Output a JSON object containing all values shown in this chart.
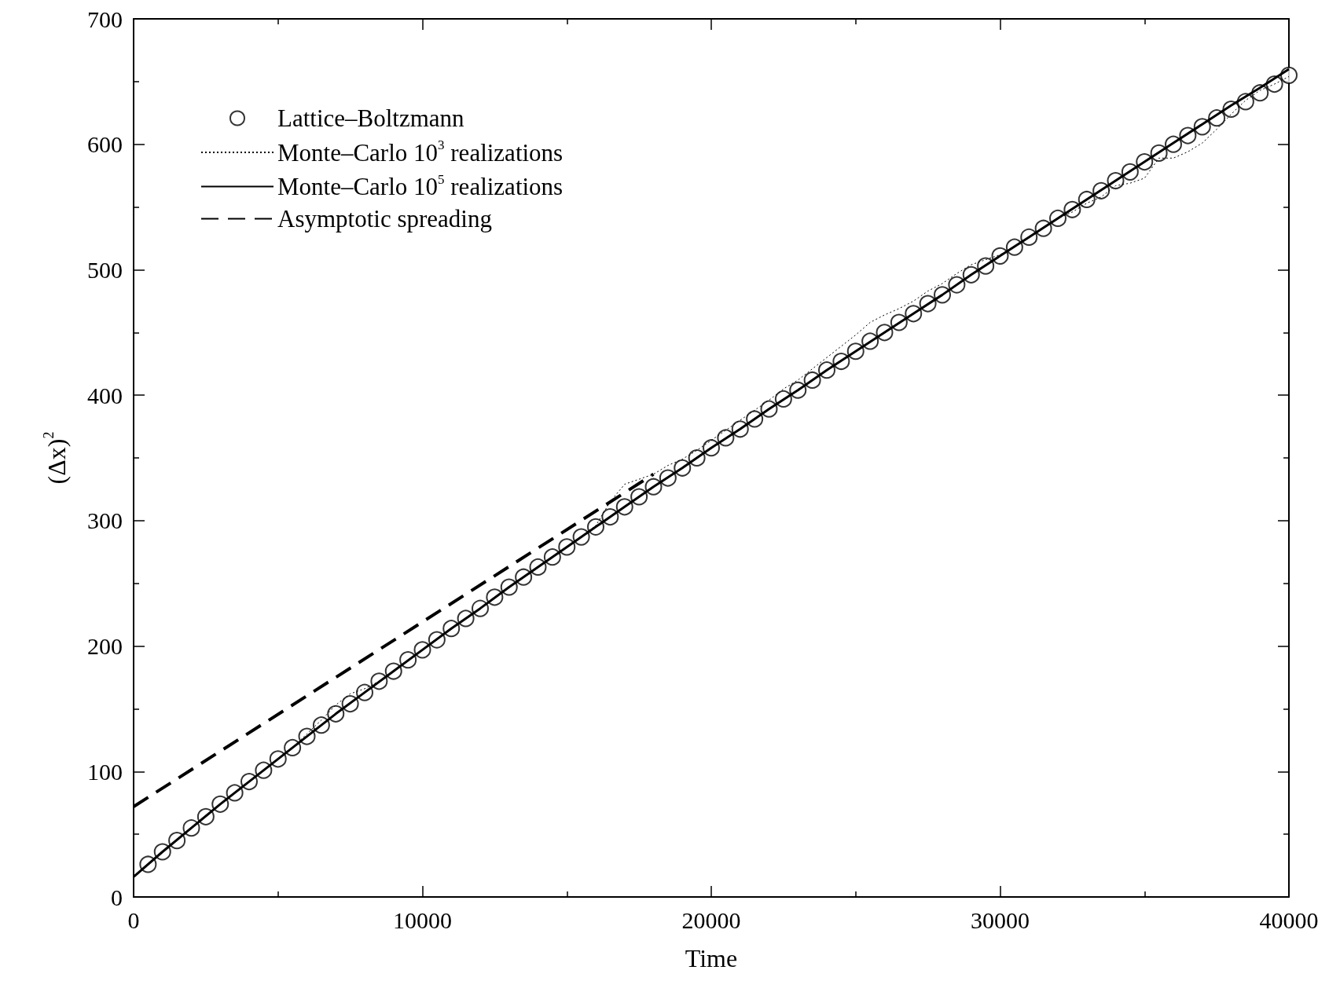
{
  "chart_data": {
    "type": "line",
    "xlabel": "Time",
    "ylabel": "(Δx)$^{2}$",
    "xlim": [
      0,
      40000
    ],
    "xticks": [
      0,
      10000,
      20000,
      30000,
      40000
    ],
    "ylim": [
      0,
      700
    ],
    "yticks": [
      0,
      100,
      200,
      300,
      400,
      500,
      600,
      700
    ],
    "grid": false,
    "legend": "top left",
    "series": [
      {
        "name": "Lattice–Boltzmann",
        "type": "scatter",
        "marker": "circle",
        "color": "#000000",
        "x": [
          500,
          1000,
          1500,
          2000,
          2500,
          3000,
          3500,
          4000,
          4500,
          5000,
          5500,
          6000,
          6500,
          7000,
          7500,
          8000,
          8500,
          9000,
          9500,
          10000,
          10500,
          11000,
          11500,
          12000,
          12500,
          13000,
          13500,
          14000,
          14500,
          15000,
          15500,
          16000,
          16500,
          17000,
          17500,
          18000,
          18500,
          19000,
          19500,
          20000,
          20500,
          21000,
          21500,
          22000,
          22500,
          23000,
          23500,
          24000,
          24500,
          25000,
          25500,
          26000,
          26500,
          27000,
          27500,
          28000,
          28500,
          29000,
          29500,
          30000,
          30500,
          31000,
          31500,
          32000,
          32500,
          33000,
          33500,
          34000,
          34500,
          35000,
          35500,
          36000,
          36500,
          37000,
          37500,
          38000,
          38500,
          39000,
          39500,
          40000
        ],
        "values": [
          26,
          36,
          45,
          55,
          64,
          74,
          83,
          92,
          101,
          110,
          119,
          128,
          137,
          146,
          154,
          163,
          172,
          180,
          189,
          197,
          205,
          214,
          222,
          230,
          239,
          247,
          255,
          263,
          271,
          279,
          287,
          295,
          303,
          311,
          319,
          327,
          334,
          342,
          350,
          358,
          366,
          373,
          381,
          389,
          397,
          404,
          412,
          420,
          427,
          435,
          443,
          450,
          458,
          465,
          473,
          480,
          488,
          496,
          503,
          511,
          518,
          526,
          533,
          541,
          548,
          556,
          563,
          571,
          578,
          586,
          593,
          600,
          607,
          614,
          621,
          628,
          634,
          641,
          648,
          655
        ]
      },
      {
        "name": "Monte–Carlo 10$^{3}$ realizations",
        "type": "line",
        "line_style": "dotted",
        "marker": "none",
        "color": "#000000",
        "x": [
          0,
          500,
          1000,
          1500,
          2000,
          2500,
          3000,
          3500,
          4000,
          4500,
          5000,
          5500,
          6000,
          6500,
          7000,
          7500,
          8000,
          8500,
          9000,
          9500,
          10000,
          10500,
          11000,
          11500,
          12000,
          12500,
          13000,
          13500,
          14000,
          14500,
          15000,
          15500,
          16000,
          16500,
          17000,
          17500,
          18000,
          18500,
          19000,
          19500,
          20000,
          20500,
          21000,
          21500,
          22000,
          22500,
          23000,
          23500,
          24000,
          24500,
          25000,
          25500,
          26000,
          26500,
          27000,
          27500,
          28000,
          28500,
          29000,
          29500,
          30000,
          30500,
          31000,
          31500,
          32000,
          32500,
          33000,
          33500,
          34000,
          34500,
          35000,
          35500,
          36000,
          36500,
          37000,
          37500,
          38000,
          38500,
          39000,
          39500,
          40000
        ],
        "values": [
          16,
          26,
          36,
          45,
          55,
          64,
          74,
          83,
          92,
          101,
          110,
          119,
          130,
          141,
          153,
          162,
          166,
          172,
          180,
          189,
          197,
          205,
          214,
          222,
          230,
          239,
          247,
          255,
          263,
          271,
          279,
          287,
          296,
          315,
          329,
          333,
          337,
          344,
          349,
          356,
          364,
          372,
          380,
          388,
          396,
          405,
          412,
          421,
          430,
          439,
          448,
          458,
          464,
          469,
          475,
          483,
          489,
          497,
          504,
          508,
          512,
          518,
          526,
          533,
          541,
          546,
          553,
          558,
          567,
          569,
          573,
          589,
          589,
          594,
          601,
          612,
          624,
          635,
          643,
          648,
          654
        ]
      },
      {
        "name": "Monte–Carlo 10$^{5}$ realizations",
        "type": "line",
        "line_style": "solid",
        "marker": "none",
        "color": "#000000",
        "x": [
          0,
          1000,
          2000,
          3000,
          4000,
          5000,
          6000,
          7000,
          8000,
          9000,
          10000,
          11000,
          12000,
          13000,
          14000,
          15000,
          16000,
          17000,
          18000,
          19000,
          20000,
          21000,
          22000,
          23000,
          24000,
          25000,
          26000,
          27000,
          28000,
          29000,
          30000,
          31000,
          32000,
          33000,
          34000,
          35000,
          36000,
          37000,
          38000,
          39000,
          40000
        ],
        "values": [
          16,
          36,
          55,
          74,
          92,
          110,
          128,
          146,
          163,
          180,
          197,
          214,
          230,
          247,
          263,
          279,
          295,
          311,
          327,
          342,
          358,
          373,
          389,
          404,
          420,
          435,
          450,
          465,
          480,
          496,
          511,
          526,
          541,
          556,
          571,
          586,
          601,
          616,
          631,
          645,
          660
        ]
      },
      {
        "name": "Asymptotic spreading",
        "type": "line",
        "line_style": "dashed",
        "marker": "none",
        "color": "#000000",
        "x": [
          0,
          18000
        ],
        "values": [
          72,
          337
        ]
      }
    ]
  }
}
